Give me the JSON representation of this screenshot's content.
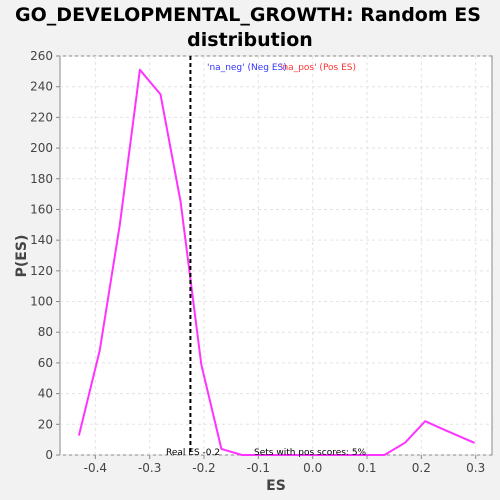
{
  "chart_data": {
    "type": "line",
    "title_line1": "GO_DEVELOPMENTAL_GROWTH: Random ES",
    "title_line2": "distribution",
    "xlabel": "ES",
    "ylabel": "P(ES)",
    "xlim": [
      -0.465,
      0.33
    ],
    "ylim": [
      0,
      260
    ],
    "x_ticks": [
      -0.4,
      -0.3,
      -0.2,
      -0.1,
      0.0,
      0.1,
      0.2,
      0.3
    ],
    "x_tick_labels": [
      "-0.4",
      "-0.3",
      "-0.2",
      "-0.1",
      "0.0",
      "0.1",
      "0.2",
      "0.3"
    ],
    "y_ticks": [
      0,
      20,
      40,
      60,
      80,
      100,
      120,
      140,
      160,
      180,
      200,
      220,
      240,
      260
    ],
    "grid": true,
    "series": [
      {
        "color": "#ff33ff",
        "x": [
          -0.43,
          -0.392,
          -0.355,
          -0.318,
          -0.28,
          -0.243,
          -0.205,
          -0.168,
          -0.13,
          -0.093,
          -0.055,
          -0.018,
          0.02,
          0.057,
          0.095,
          0.132,
          0.17,
          0.207,
          0.245,
          0.297
        ],
        "y": [
          13,
          68,
          150,
          251,
          235,
          165,
          59,
          4,
          0,
          0,
          0,
          0,
          0,
          0,
          0,
          0,
          8,
          22,
          16,
          8
        ]
      }
    ],
    "real_es": -0.225,
    "annotations": {
      "legend_neg": "'na_neg' (Neg ES)",
      "legend_pos": "'na_pos' (Pos ES)",
      "real_es_label": "Real ES -0.2",
      "pos_scores_label": "Sets with pos scores: 5%"
    },
    "colors": {
      "line": "#ff33ff",
      "legend_neg": "#3333ff",
      "legend_pos": "#ff3333",
      "real_es_line": "#000000"
    }
  }
}
